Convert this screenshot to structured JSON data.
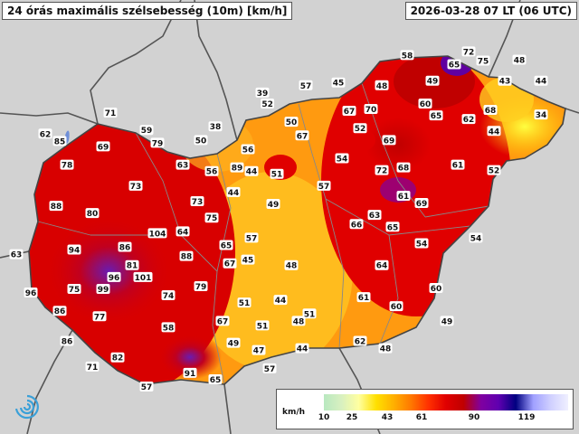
{
  "header": {
    "title": "24 órás maximális szélsebesség (10m) [km/h]",
    "date": "2026-03-28 07 LT (06 UTC)"
  },
  "legend": {
    "unit": "km/h",
    "ticks": [
      "10",
      "25",
      "43",
      "61",
      "90",
      "119"
    ],
    "colors": [
      "#b8e8c0",
      "#d8f0c0",
      "#ffffa0",
      "#ffe000",
      "#ffb000",
      "#ff7800",
      "#ff3000",
      "#e00000",
      "#c00000",
      "#8000a0",
      "#6000b0",
      "#000080",
      "#a0a0ff",
      "#d0d0ff",
      "#f0f0ff"
    ]
  },
  "map_data": {
    "values": [
      {
        "v": "58",
        "lon": 20.75,
        "lat": 48.58
      },
      {
        "v": "72",
        "lon": 21.6,
        "lat": 48.62
      },
      {
        "v": "65",
        "lon": 21.4,
        "lat": 48.48
      },
      {
        "v": "75",
        "lon": 21.8,
        "lat": 48.52
      },
      {
        "v": "48",
        "lon": 22.3,
        "lat": 48.53
      },
      {
        "v": "57",
        "lon": 19.35,
        "lat": 48.25
      },
      {
        "v": "45",
        "lon": 19.8,
        "lat": 48.28
      },
      {
        "v": "48",
        "lon": 20.4,
        "lat": 48.25
      },
      {
        "v": "49",
        "lon": 21.1,
        "lat": 48.3
      },
      {
        "v": "43",
        "lon": 22.1,
        "lat": 48.3
      },
      {
        "v": "44",
        "lon": 22.6,
        "lat": 48.3
      },
      {
        "v": "39",
        "lon": 18.75,
        "lat": 48.17
      },
      {
        "v": "52",
        "lon": 18.82,
        "lat": 48.05
      },
      {
        "v": "60",
        "lon": 21.0,
        "lat": 48.05
      },
      {
        "v": "65",
        "lon": 21.15,
        "lat": 47.92
      },
      {
        "v": "68",
        "lon": 21.9,
        "lat": 47.98
      },
      {
        "v": "67",
        "lon": 19.95,
        "lat": 47.97
      },
      {
        "v": "70",
        "lon": 20.25,
        "lat": 47.99
      },
      {
        "v": "62",
        "lon": 21.6,
        "lat": 47.88
      },
      {
        "v": "34",
        "lon": 22.6,
        "lat": 47.93
      },
      {
        "v": "71",
        "lon": 16.65,
        "lat": 47.95
      },
      {
        "v": "50",
        "lon": 19.15,
        "lat": 47.85
      },
      {
        "v": "67",
        "lon": 19.3,
        "lat": 47.7
      },
      {
        "v": "52",
        "lon": 20.1,
        "lat": 47.78
      },
      {
        "v": "44",
        "lon": 21.95,
        "lat": 47.75
      },
      {
        "v": "62",
        "lon": 15.75,
        "lat": 47.72
      },
      {
        "v": "59",
        "lon": 17.15,
        "lat": 47.76
      },
      {
        "v": "85",
        "lon": 15.95,
        "lat": 47.64
      },
      {
        "v": "38",
        "lon": 18.1,
        "lat": 47.8
      },
      {
        "v": "50",
        "lon": 17.9,
        "lat": 47.65
      },
      {
        "v": "79",
        "lon": 17.3,
        "lat": 47.62
      },
      {
        "v": "69",
        "lon": 16.55,
        "lat": 47.58
      },
      {
        "v": "69",
        "lon": 20.5,
        "lat": 47.65
      },
      {
        "v": "56",
        "lon": 18.55,
        "lat": 47.55
      },
      {
        "v": "54",
        "lon": 19.85,
        "lat": 47.45
      },
      {
        "v": "78",
        "lon": 16.05,
        "lat": 47.38
      },
      {
        "v": "63",
        "lon": 17.65,
        "lat": 47.38
      },
      {
        "v": "89",
        "lon": 18.4,
        "lat": 47.35
      },
      {
        "v": "44",
        "lon": 18.6,
        "lat": 47.31
      },
      {
        "v": "56",
        "lon": 18.05,
        "lat": 47.31
      },
      {
        "v": "51",
        "lon": 18.95,
        "lat": 47.28
      },
      {
        "v": "72",
        "lon": 20.4,
        "lat": 47.32
      },
      {
        "v": "68",
        "lon": 20.7,
        "lat": 47.35
      },
      {
        "v": "61",
        "lon": 21.45,
        "lat": 47.38
      },
      {
        "v": "52",
        "lon": 21.95,
        "lat": 47.32
      },
      {
        "v": "73",
        "lon": 17.0,
        "lat": 47.15
      },
      {
        "v": "57",
        "lon": 19.6,
        "lat": 47.15
      },
      {
        "v": "44",
        "lon": 18.35,
        "lat": 47.08
      },
      {
        "v": "73",
        "lon": 17.85,
        "lat": 46.98
      },
      {
        "v": "49",
        "lon": 18.9,
        "lat": 46.95
      },
      {
        "v": "61",
        "lon": 20.7,
        "lat": 47.04
      },
      {
        "v": "69",
        "lon": 20.95,
        "lat": 46.96
      },
      {
        "v": "88",
        "lon": 15.9,
        "lat": 46.93
      },
      {
        "v": "80",
        "lon": 16.4,
        "lat": 46.85
      },
      {
        "v": "75",
        "lon": 18.05,
        "lat": 46.8
      },
      {
        "v": "63",
        "lon": 20.3,
        "lat": 46.83
      },
      {
        "v": "66",
        "lon": 20.05,
        "lat": 46.73
      },
      {
        "v": "65",
        "lon": 20.55,
        "lat": 46.7
      },
      {
        "v": "104",
        "lon": 17.3,
        "lat": 46.63
      },
      {
        "v": "64",
        "lon": 17.65,
        "lat": 46.65
      },
      {
        "v": "57",
        "lon": 18.6,
        "lat": 46.58
      },
      {
        "v": "54",
        "lon": 20.95,
        "lat": 46.52
      },
      {
        "v": "54",
        "lon": 21.7,
        "lat": 46.58
      },
      {
        "v": "63",
        "lon": 15.35,
        "lat": 46.4
      },
      {
        "v": "94",
        "lon": 16.15,
        "lat": 46.45
      },
      {
        "v": "86",
        "lon": 16.85,
        "lat": 46.48
      },
      {
        "v": "65",
        "lon": 18.25,
        "lat": 46.5
      },
      {
        "v": "88",
        "lon": 17.7,
        "lat": 46.38
      },
      {
        "v": "67",
        "lon": 18.3,
        "lat": 46.3
      },
      {
        "v": "45",
        "lon": 18.55,
        "lat": 46.34
      },
      {
        "v": "48",
        "lon": 19.15,
        "lat": 46.28
      },
      {
        "v": "64",
        "lon": 20.4,
        "lat": 46.28
      },
      {
        "v": "81",
        "lon": 16.95,
        "lat": 46.28
      },
      {
        "v": "96",
        "lon": 16.7,
        "lat": 46.15
      },
      {
        "v": "101",
        "lon": 17.1,
        "lat": 46.15
      },
      {
        "v": "79",
        "lon": 17.9,
        "lat": 46.05
      },
      {
        "v": "99",
        "lon": 16.55,
        "lat": 46.02
      },
      {
        "v": "75",
        "lon": 16.15,
        "lat": 46.02
      },
      {
        "v": "96",
        "lon": 15.55,
        "lat": 45.98
      },
      {
        "v": "74",
        "lon": 17.45,
        "lat": 45.95
      },
      {
        "v": "60",
        "lon": 21.15,
        "lat": 46.03
      },
      {
        "v": "61",
        "lon": 20.15,
        "lat": 45.93
      },
      {
        "v": "44",
        "lon": 19.0,
        "lat": 45.9
      },
      {
        "v": "51",
        "lon": 18.5,
        "lat": 45.87
      },
      {
        "v": "60",
        "lon": 20.6,
        "lat": 45.83
      },
      {
        "v": "86",
        "lon": 15.95,
        "lat": 45.78
      },
      {
        "v": "77",
        "lon": 16.5,
        "lat": 45.72
      },
      {
        "v": "51",
        "lon": 19.4,
        "lat": 45.75
      },
      {
        "v": "48",
        "lon": 19.25,
        "lat": 45.67
      },
      {
        "v": "67",
        "lon": 18.2,
        "lat": 45.67
      },
      {
        "v": "51",
        "lon": 18.75,
        "lat": 45.62
      },
      {
        "v": "58",
        "lon": 17.45,
        "lat": 45.6
      },
      {
        "v": "49",
        "lon": 21.3,
        "lat": 45.67
      },
      {
        "v": "49",
        "lon": 18.35,
        "lat": 45.43
      },
      {
        "v": "62",
        "lon": 20.1,
        "lat": 45.45
      },
      {
        "v": "86",
        "lon": 16.05,
        "lat": 45.45
      },
      {
        "v": "47",
        "lon": 18.7,
        "lat": 45.35
      },
      {
        "v": "44",
        "lon": 19.3,
        "lat": 45.37
      },
      {
        "v": "48",
        "lon": 20.45,
        "lat": 45.37
      },
      {
        "v": "82",
        "lon": 16.75,
        "lat": 45.27
      },
      {
        "v": "71",
        "lon": 16.4,
        "lat": 45.17
      },
      {
        "v": "57",
        "lon": 18.85,
        "lat": 45.15
      },
      {
        "v": "91",
        "lon": 17.75,
        "lat": 45.1
      },
      {
        "v": "65",
        "lon": 18.1,
        "lat": 45.03
      },
      {
        "v": "57",
        "lon": 17.15,
        "lat": 44.95
      }
    ]
  }
}
